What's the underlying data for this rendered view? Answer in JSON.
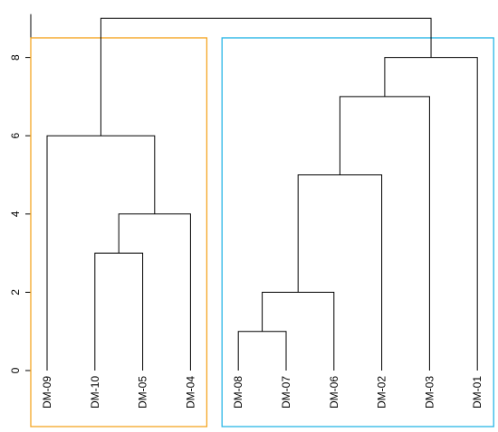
{
  "chart_data": {
    "type": "dendrogram",
    "title": "",
    "xlabel": "",
    "ylabel": "",
    "ylim": [
      0,
      9
    ],
    "yticks": [
      0,
      2,
      4,
      6,
      8
    ],
    "leaves": [
      "DM-09",
      "DM-10",
      "DM-05",
      "DM-04",
      "DM-08",
      "DM-07",
      "DM-06",
      "DM-02",
      "DM-03",
      "DM-01"
    ],
    "merges": [
      {
        "left": "DM-08",
        "right": "DM-07",
        "height": 1
      },
      {
        "left": "DM-10",
        "right": "DM-05",
        "height": 3
      },
      {
        "left": "m0",
        "right": "DM-06",
        "height": 2
      },
      {
        "left": "m1",
        "right": "DM-04",
        "height": 4
      },
      {
        "left": "m2",
        "right": "DM-02",
        "height": 5
      },
      {
        "left": "DM-09",
        "right": "m3",
        "height": 6
      },
      {
        "left": "m4",
        "right": "DM-03",
        "height": 7
      },
      {
        "left": "m6",
        "right": "DM-01",
        "height": 8
      },
      {
        "left": "m5",
        "right": "m7",
        "height": 9
      }
    ],
    "clusters": [
      {
        "leaves": [
          "DM-09",
          "DM-10",
          "DM-05",
          "DM-04"
        ],
        "color": "#f5a623",
        "top": 8.5
      },
      {
        "leaves": [
          "DM-08",
          "DM-07",
          "DM-06",
          "DM-02",
          "DM-03",
          "DM-01"
        ],
        "color": "#29b6e6",
        "top": 8.5
      }
    ],
    "grid": false
  }
}
